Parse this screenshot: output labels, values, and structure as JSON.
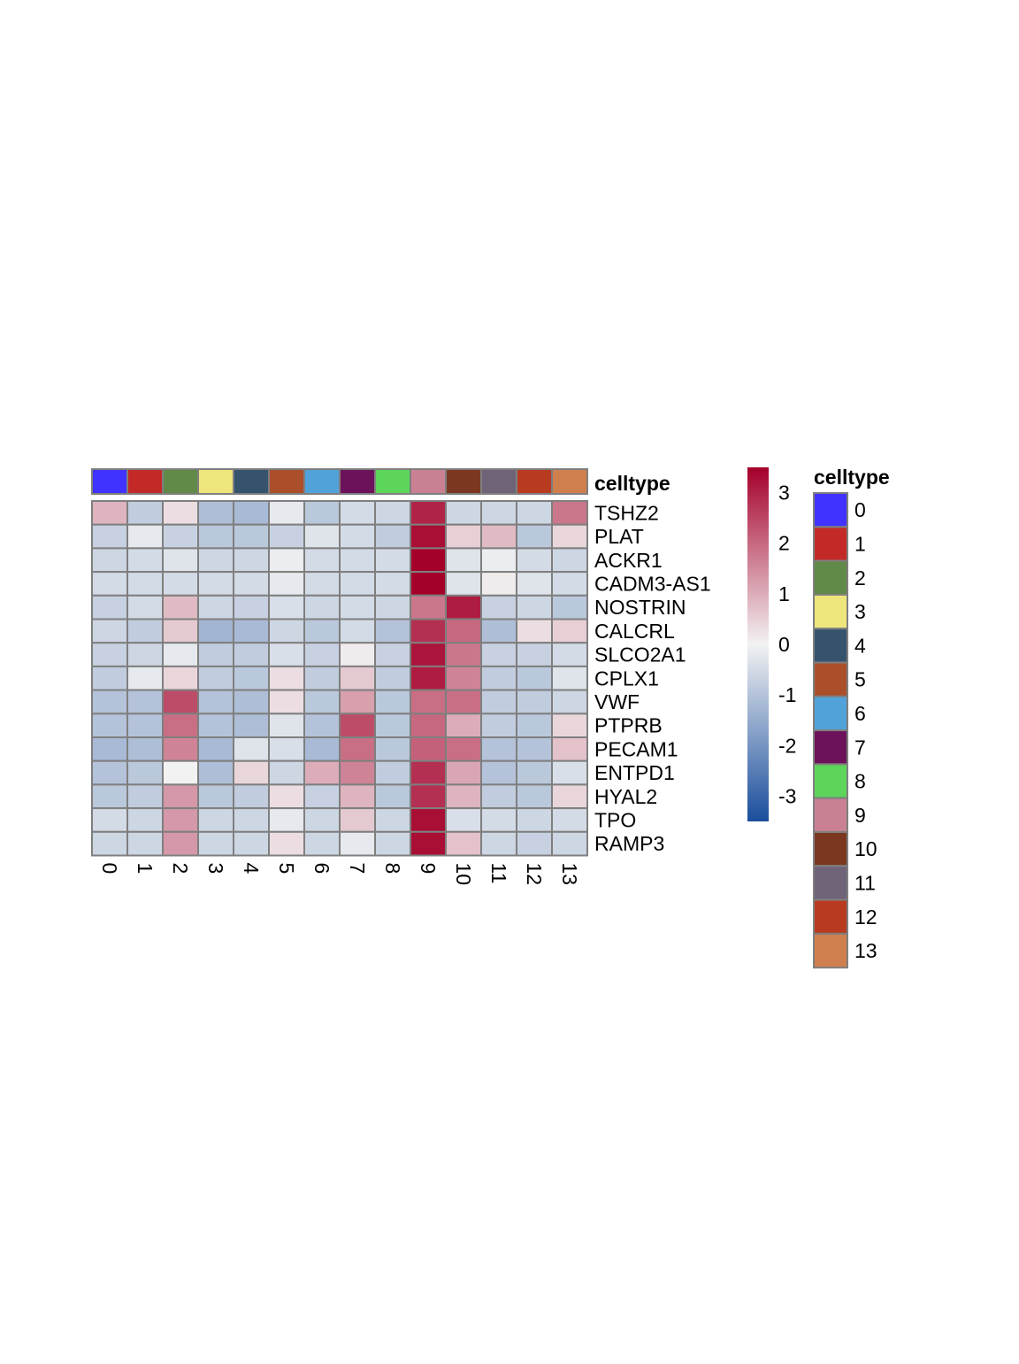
{
  "chart_data": {
    "type": "heatmap",
    "columns": [
      "0",
      "1",
      "2",
      "3",
      "4",
      "5",
      "6",
      "7",
      "8",
      "9",
      "10",
      "11",
      "12",
      "13"
    ],
    "rows": [
      "TSHZ2",
      "PLAT",
      "ACKR1",
      "CADM3-AS1",
      "NOSTRIN",
      "CALCRL",
      "SLCO2A1",
      "CPLX1",
      "VWF",
      "PTPRB",
      "PECAM1",
      "ENTPD1",
      "HYAL2",
      "TPO",
      "RAMP3"
    ],
    "values": [
      [
        0.9,
        -0.8,
        0.3,
        -1.1,
        -1.2,
        -0.2,
        -0.9,
        -0.5,
        -0.6,
        3.0,
        -0.6,
        -0.6,
        -0.6,
        1.8
      ],
      [
        -0.7,
        -0.2,
        -0.7,
        -0.9,
        -0.9,
        -0.7,
        -0.3,
        -0.5,
        -0.8,
        3.3,
        0.5,
        0.8,
        -0.9,
        0.4
      ],
      [
        -0.6,
        -0.5,
        -0.3,
        -0.6,
        -0.6,
        -0.1,
        -0.5,
        -0.5,
        -0.5,
        3.5,
        -0.3,
        -0.1,
        -0.5,
        -0.6
      ],
      [
        -0.5,
        -0.5,
        -0.5,
        -0.5,
        -0.5,
        -0.2,
        -0.5,
        -0.5,
        -0.5,
        3.5,
        -0.3,
        0.1,
        -0.3,
        -0.5
      ],
      [
        -0.7,
        -0.5,
        0.8,
        -0.6,
        -0.7,
        -0.4,
        -0.6,
        -0.5,
        -0.6,
        1.8,
        3.1,
        -0.7,
        -0.6,
        -0.9
      ],
      [
        -0.6,
        -0.8,
        0.6,
        -1.3,
        -1.2,
        -0.6,
        -0.9,
        -0.5,
        -1.0,
        2.8,
        2.0,
        -1.1,
        0.3,
        0.5
      ],
      [
        -0.7,
        -0.6,
        -0.2,
        -0.8,
        -0.8,
        -0.4,
        -0.7,
        0.1,
        -0.7,
        3.2,
        1.8,
        -0.7,
        -0.7,
        -0.5
      ],
      [
        -0.8,
        -0.2,
        0.4,
        -0.8,
        -0.9,
        0.3,
        -0.8,
        0.6,
        -0.8,
        3.1,
        1.6,
        -0.8,
        -0.9,
        -0.3
      ],
      [
        -1.0,
        -1.0,
        2.4,
        -1.0,
        -1.1,
        0.3,
        -0.9,
        1.2,
        -0.9,
        1.9,
        1.9,
        -0.8,
        -0.8,
        -0.6
      ],
      [
        -1.0,
        -1.0,
        1.9,
        -1.0,
        -1.1,
        -0.3,
        -1.0,
        2.4,
        -0.9,
        2.0,
        1.0,
        -0.8,
        -0.9,
        0.4
      ],
      [
        -1.2,
        -1.1,
        1.6,
        -1.2,
        -0.3,
        -0.4,
        -1.2,
        1.9,
        -0.9,
        2.1,
        1.9,
        -1.0,
        -1.0,
        0.7
      ],
      [
        -1.0,
        -0.9,
        0.0,
        -1.1,
        0.4,
        -0.6,
        1.0,
        1.6,
        -0.8,
        2.8,
        1.1,
        -1.0,
        -0.9,
        -0.4
      ],
      [
        -0.9,
        -0.8,
        1.3,
        -0.9,
        -0.8,
        0.3,
        -0.7,
        0.9,
        -0.9,
        2.8,
        0.9,
        -0.8,
        -0.9,
        0.4
      ],
      [
        -0.5,
        -0.6,
        1.3,
        -0.6,
        -0.6,
        -0.2,
        -0.6,
        0.6,
        -0.6,
        3.3,
        -0.4,
        -0.5,
        -0.6,
        -0.5
      ],
      [
        -0.6,
        -0.6,
        1.3,
        -0.6,
        -0.6,
        0.3,
        -0.6,
        -0.2,
        -0.6,
        3.3,
        0.7,
        -0.6,
        -0.7,
        -0.6
      ]
    ],
    "annotation": {
      "name": "celltype",
      "colors": [
        "#4132FF",
        "#C32A27",
        "#618947",
        "#EEE57C",
        "#35536D",
        "#AB4F2B",
        "#52A2DA",
        "#6C125A",
        "#5DD45A",
        "#CA8093",
        "#7C3721",
        "#6F6378",
        "#B83B20",
        "#CF7F4D"
      ]
    },
    "colorbar": {
      "ticks": [
        3,
        2,
        1,
        0,
        -1,
        -2,
        -3
      ],
      "tick_labels": [
        "3",
        "2",
        "1",
        "0",
        "-1",
        "-2",
        "-3"
      ],
      "range": [
        -3.5,
        3.5
      ],
      "low": "#1A4E9D",
      "mid": "#F2F2F2",
      "high": "#A5002A"
    },
    "legend": {
      "title": "celltype",
      "labels": [
        "0",
        "1",
        "2",
        "3",
        "4",
        "5",
        "6",
        "7",
        "8",
        "9",
        "10",
        "11",
        "12",
        "13"
      ]
    }
  }
}
